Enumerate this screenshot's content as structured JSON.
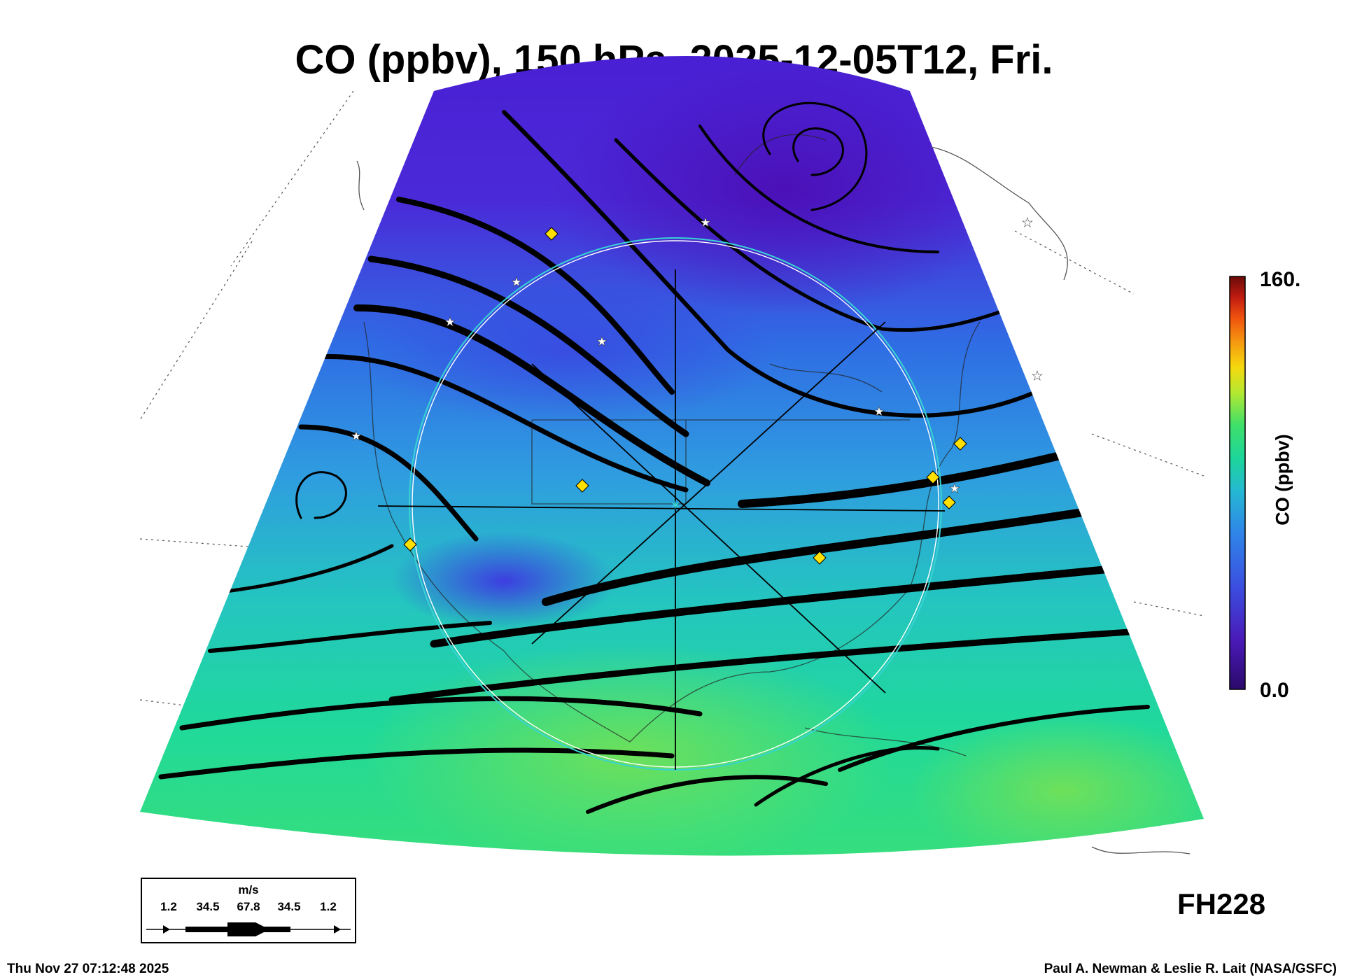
{
  "title": "CO (ppbv), 150 hPa, 2025-12-05T12, Fri.",
  "colorbar": {
    "label": "CO (ppbv)",
    "max_label": "160.",
    "min_label": "0.0",
    "range": [
      0,
      160
    ],
    "colors": [
      "#2a0a6a",
      "#4a1ab8",
      "#3b4fe0",
      "#2f86e8",
      "#25b8d2",
      "#1dd59a",
      "#3fe06a",
      "#b6e830",
      "#f5d90f",
      "#f59a10",
      "#f0520f",
      "#c01b10",
      "#6a0a08"
    ]
  },
  "wind_legend": {
    "unit": "m/s",
    "values": [
      "1.2",
      "34.5",
      "67.8",
      "34.5",
      "1.2"
    ]
  },
  "forecast_hour": "FH228",
  "run_timestamp": "Thu Nov 27 07:12:48 2025",
  "credit": "Paul A. Newman & Leslie R. Lait (NASA/GSFC)",
  "map": {
    "projection": "polar-stereographic sector",
    "field_colors": {
      "north": "#4f1fd6",
      "mid": "#2e6ee6",
      "south": "#27d6a0",
      "band": "#1fd98a",
      "low_center": "#4a22c8"
    },
    "streamline_color": "#000000",
    "circle_color": "#39d3d3",
    "marker_colors": {
      "diamond": "#ffe000",
      "star": "#ffffff"
    }
  }
}
